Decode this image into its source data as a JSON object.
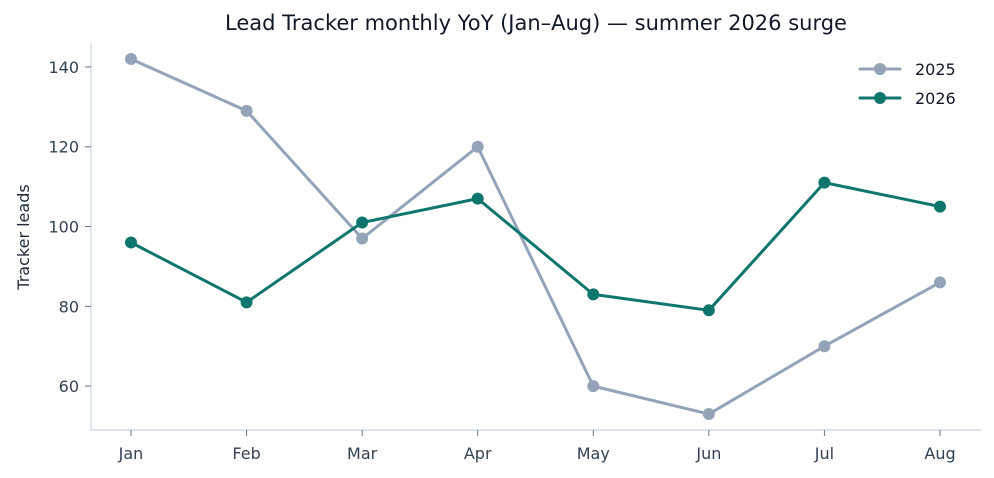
{
  "chart_data": {
    "type": "line",
    "title": "Lead Tracker monthly YoY (Jan–Aug) — summer 2026 surge",
    "xlabel": "",
    "ylabel": "Tracker leads",
    "categories": [
      "Jan",
      "Feb",
      "Mar",
      "Apr",
      "May",
      "Jun",
      "Jul",
      "Aug"
    ],
    "ylim": [
      49,
      146
    ],
    "yticks": [
      60,
      80,
      100,
      120,
      140
    ],
    "grid": false,
    "legend_position": "top-right",
    "series": [
      {
        "name": "2025",
        "color": "#94a3b8",
        "values": [
          142,
          129,
          97,
          120,
          60,
          53,
          70,
          86
        ]
      },
      {
        "name": "2026",
        "color": "#0f766e",
        "values": [
          96,
          81,
          101,
          107,
          83,
          79,
          111,
          105
        ]
      }
    ]
  }
}
